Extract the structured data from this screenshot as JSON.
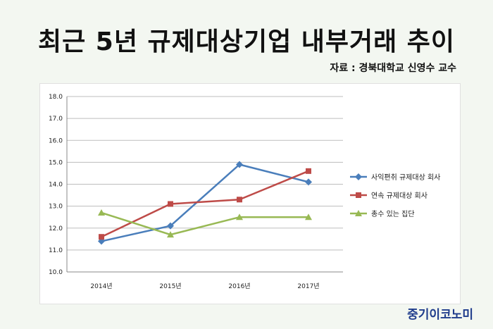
{
  "headline": "최근 5년 규제대상기업 내부거래 추이",
  "source": "자료 : 경북대학교 신영수 교수",
  "brand": "중기이코노미",
  "chart_data": {
    "type": "line",
    "title": "",
    "xlabel": "",
    "ylabel": "",
    "categories": [
      "2014년",
      "2015년",
      "2016년",
      "2017년"
    ],
    "ylim": [
      10.0,
      18.0
    ],
    "yticks": [
      "10.0",
      "11.0",
      "12.0",
      "13.0",
      "14.0",
      "15.0",
      "16.0",
      "17.0",
      "18.0"
    ],
    "grid": "horizontal",
    "legend_position": "right",
    "series": [
      {
        "name": "사익편취 규제대상 회사",
        "color": "#4a7ebb",
        "marker": "diamond",
        "values": [
          11.4,
          12.1,
          14.9,
          14.1
        ]
      },
      {
        "name": "연속 규제대상 회사",
        "color": "#be4b48",
        "marker": "square",
        "values": [
          11.6,
          13.1,
          13.3,
          14.6
        ]
      },
      {
        "name": "총수 있는 집단",
        "color": "#98b954",
        "marker": "triangle",
        "values": [
          12.7,
          11.7,
          12.5,
          12.5
        ]
      }
    ]
  }
}
